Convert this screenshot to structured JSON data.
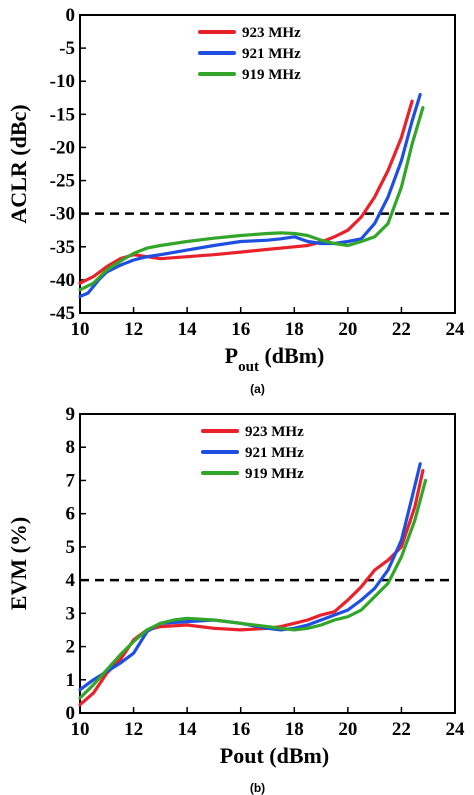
{
  "chart_data": [
    {
      "type": "line",
      "caption": "(a)",
      "xlabel_main": "P",
      "xlabel_sub": "out",
      "xlabel_unit": " (dBm)",
      "ylabel": "ACLR (dBc)",
      "xlim": [
        10,
        24
      ],
      "ylim": [
        -45,
        0
      ],
      "xticks": [
        "10",
        "12",
        "14",
        "16",
        "18",
        "20",
        "22",
        "24"
      ],
      "yticks": [
        "0",
        "-5",
        "-10",
        "-15",
        "-20",
        "-25",
        "-30",
        "-35",
        "-40",
        "-45"
      ],
      "threshold": -30,
      "legend_position": "top-center",
      "series": [
        {
          "name": "923 MHz",
          "color": "#e8212a",
          "points": [
            [
              10,
              -40.5
            ],
            [
              10.5,
              -39.5
            ],
            [
              11,
              -38
            ],
            [
              11.5,
              -36.8
            ],
            [
              12,
              -36.2
            ],
            [
              12.5,
              -36.5
            ],
            [
              13,
              -36.8
            ],
            [
              14,
              -36.5
            ],
            [
              15,
              -36.2
            ],
            [
              16,
              -35.8
            ],
            [
              17,
              -35.4
            ],
            [
              18,
              -35.0
            ],
            [
              18.5,
              -34.8
            ],
            [
              19,
              -34.3
            ],
            [
              19.5,
              -33.5
            ],
            [
              20,
              -32.5
            ],
            [
              20.5,
              -30.5
            ],
            [
              21,
              -27.5
            ],
            [
              21.5,
              -23.5
            ],
            [
              22,
              -18.5
            ],
            [
              22.4,
              -13
            ]
          ]
        },
        {
          "name": "921 MHz",
          "color": "#1f4fe0",
          "points": [
            [
              10,
              -42.5
            ],
            [
              10.3,
              -42
            ],
            [
              10.7,
              -40
            ],
            [
              11,
              -38.8
            ],
            [
              11.5,
              -37.8
            ],
            [
              12,
              -37
            ],
            [
              12.5,
              -36.5
            ],
            [
              13,
              -36.2
            ],
            [
              14,
              -35.5
            ],
            [
              15,
              -34.8
            ],
            [
              16,
              -34.2
            ],
            [
              17,
              -34
            ],
            [
              17.5,
              -33.8
            ],
            [
              18,
              -33.5
            ],
            [
              18.5,
              -34.2
            ],
            [
              19,
              -34.5
            ],
            [
              19.5,
              -34.5
            ],
            [
              20,
              -34.2
            ],
            [
              20.5,
              -33.8
            ],
            [
              21,
              -31.5
            ],
            [
              21.5,
              -27.5
            ],
            [
              22,
              -22
            ],
            [
              22.4,
              -16
            ],
            [
              22.7,
              -12
            ]
          ]
        },
        {
          "name": "919 MHz",
          "color": "#32a628",
          "points": [
            [
              10,
              -41.5
            ],
            [
              10.5,
              -40.5
            ],
            [
              11,
              -38.5
            ],
            [
              11.5,
              -37.2
            ],
            [
              12,
              -36
            ],
            [
              12.5,
              -35.2
            ],
            [
              13,
              -34.8
            ],
            [
              14,
              -34.2
            ],
            [
              15,
              -33.7
            ],
            [
              16,
              -33.3
            ],
            [
              17,
              -33
            ],
            [
              17.5,
              -32.9
            ],
            [
              18,
              -33
            ],
            [
              18.5,
              -33.3
            ],
            [
              19,
              -34
            ],
            [
              19.5,
              -34.5
            ],
            [
              20,
              -34.8
            ],
            [
              20.5,
              -34.2
            ],
            [
              21,
              -33.5
            ],
            [
              21.5,
              -31.5
            ],
            [
              22,
              -26
            ],
            [
              22.4,
              -19.5
            ],
            [
              22.8,
              -14
            ]
          ]
        }
      ]
    },
    {
      "type": "line",
      "caption": "(b)",
      "xlabel": "Pout (dBm)",
      "ylabel": "EVM (%)",
      "xlim": [
        10,
        24
      ],
      "ylim": [
        0,
        9
      ],
      "xticks": [
        "10",
        "12",
        "14",
        "16",
        "18",
        "20",
        "22",
        "24"
      ],
      "yticks": [
        "0",
        "1",
        "2",
        "3",
        "4",
        "5",
        "6",
        "7",
        "8",
        "9"
      ],
      "threshold": 4,
      "legend_position": "top-center",
      "series": [
        {
          "name": "923 MHz",
          "color": "#e8212a",
          "points": [
            [
              10,
              0.25
            ],
            [
              10.5,
              0.6
            ],
            [
              11,
              1.2
            ],
            [
              11.5,
              1.6
            ],
            [
              12,
              2.2
            ],
            [
              12.5,
              2.5
            ],
            [
              13,
              2.6
            ],
            [
              14,
              2.65
            ],
            [
              15,
              2.55
            ],
            [
              16,
              2.5
            ],
            [
              17,
              2.55
            ],
            [
              17.5,
              2.6
            ],
            [
              18,
              2.7
            ],
            [
              18.5,
              2.8
            ],
            [
              19,
              2.95
            ],
            [
              19.5,
              3.05
            ],
            [
              20,
              3.4
            ],
            [
              20.5,
              3.8
            ],
            [
              21,
              4.3
            ],
            [
              21.5,
              4.6
            ],
            [
              22,
              5.0
            ],
            [
              22.5,
              6.2
            ],
            [
              22.8,
              7.3
            ]
          ]
        },
        {
          "name": "921 MHz",
          "color": "#1f4fe0",
          "points": [
            [
              10,
              0.7
            ],
            [
              10.5,
              1.0
            ],
            [
              11,
              1.25
            ],
            [
              11.5,
              1.5
            ],
            [
              12,
              1.8
            ],
            [
              12.5,
              2.45
            ],
            [
              13,
              2.7
            ],
            [
              14,
              2.75
            ],
            [
              15,
              2.8
            ],
            [
              16,
              2.7
            ],
            [
              17,
              2.55
            ],
            [
              17.5,
              2.5
            ],
            [
              18,
              2.55
            ],
            [
              18.5,
              2.65
            ],
            [
              19,
              2.8
            ],
            [
              19.5,
              2.95
            ],
            [
              20,
              3.1
            ],
            [
              20.5,
              3.4
            ],
            [
              21,
              3.75
            ],
            [
              21.5,
              4.3
            ],
            [
              22,
              5.2
            ],
            [
              22.4,
              6.5
            ],
            [
              22.7,
              7.5
            ]
          ]
        },
        {
          "name": "919 MHz",
          "color": "#32a628",
          "points": [
            [
              10,
              0.45
            ],
            [
              10.5,
              0.85
            ],
            [
              11,
              1.3
            ],
            [
              11.5,
              1.75
            ],
            [
              12,
              2.15
            ],
            [
              12.5,
              2.5
            ],
            [
              13,
              2.7
            ],
            [
              13.5,
              2.8
            ],
            [
              14,
              2.85
            ],
            [
              15,
              2.8
            ],
            [
              16,
              2.7
            ],
            [
              17,
              2.6
            ],
            [
              17.5,
              2.55
            ],
            [
              18,
              2.5
            ],
            [
              18.5,
              2.55
            ],
            [
              19,
              2.65
            ],
            [
              19.5,
              2.8
            ],
            [
              20,
              2.9
            ],
            [
              20.5,
              3.1
            ],
            [
              21,
              3.5
            ],
            [
              21.5,
              3.9
            ],
            [
              22,
              4.7
            ],
            [
              22.5,
              5.8
            ],
            [
              22.9,
              7.0
            ]
          ]
        }
      ]
    }
  ]
}
